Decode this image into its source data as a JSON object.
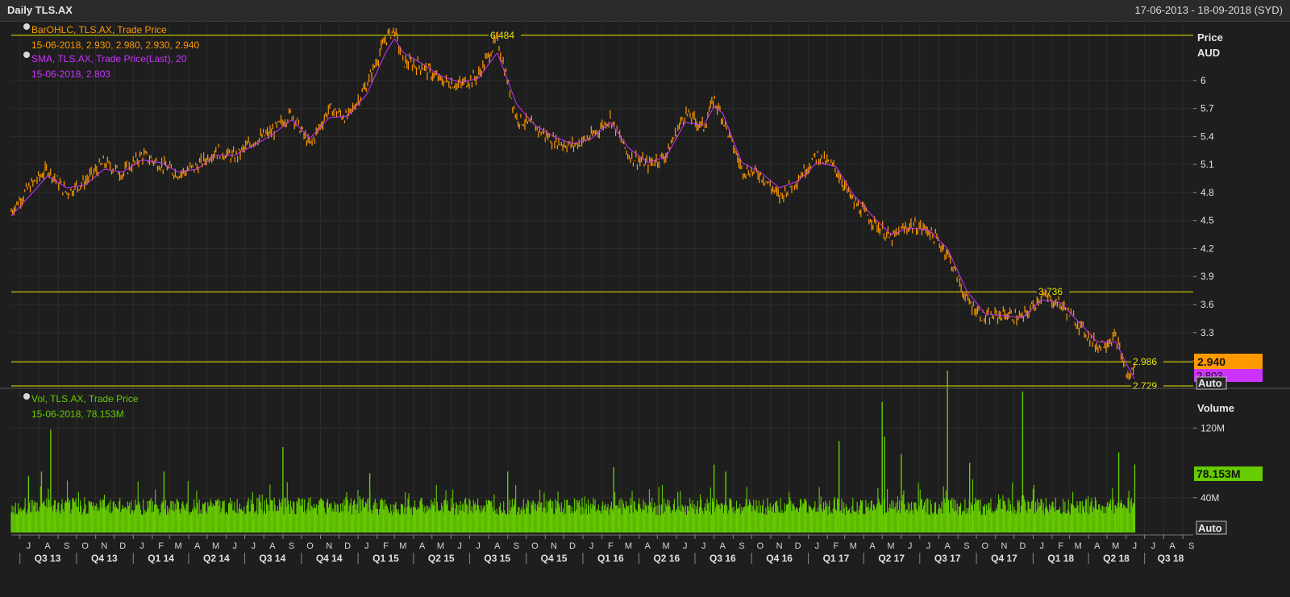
{
  "window": {
    "title": "Daily TLS.AX",
    "date_range": "17-06-2013 - 18-09-2018 (SYD)"
  },
  "price_panel": {
    "axis_title_1": "Price",
    "axis_title_2": "AUD",
    "auto_label": "Auto",
    "legend": {
      "ohlc_name": "BarOHLC, TLS.AX, Trade Price",
      "ohlc_values": "15-06-2018, 2.930, 2.980, 2.930, 2.940",
      "sma_name": "SMA, TLS.AX, Trade Price(Last),  20",
      "sma_values": "15-06-2018, 2.803"
    },
    "last_price_badge": "2.940",
    "sma_badge": "2.803",
    "hlines": [
      {
        "value": 6.484,
        "label": "6.484"
      },
      {
        "value": 3.736,
        "label": "3.736"
      },
      {
        "value": 2.986,
        "label": "2.986"
      },
      {
        "value": 2.729,
        "label": "2.729"
      }
    ]
  },
  "volume_panel": {
    "axis_title": "Volume",
    "auto_label": "Auto",
    "legend": {
      "name": "Vol, TLS.AX, Trade Price",
      "values": "15-06-2018, 78.153M"
    },
    "last_badge": "78.153M"
  },
  "colors": {
    "ohlc": "#ff9900",
    "sma": "#cc33ff",
    "volume": "#66cc00",
    "hline": "#e6e600",
    "background": "#1e1e1e"
  },
  "chart_data": [
    {
      "type": "line",
      "title": "Daily TLS.AX",
      "ylabel": "Price AUD",
      "ylim": [
        2.72,
        6.62
      ],
      "y_ticks": [
        {
          "value": 6.0,
          "label": "6"
        },
        {
          "value": 5.7,
          "label": "5.7"
        },
        {
          "value": 5.4,
          "label": "5.4"
        },
        {
          "value": 5.1,
          "label": "5.1"
        },
        {
          "value": 4.8,
          "label": "4.8"
        },
        {
          "value": 4.5,
          "label": "4.5"
        },
        {
          "value": 4.2,
          "label": "4.2"
        },
        {
          "value": 3.9,
          "label": "3.9"
        },
        {
          "value": 3.6,
          "label": "3.6"
        },
        {
          "value": 3.3,
          "label": "3.3"
        },
        {
          "value": 3.0,
          "label": "3"
        }
      ],
      "x": [
        "2013-06-17",
        "2013-07-15",
        "2013-08-15",
        "2013-09-15",
        "2013-10-15",
        "2013-11-15",
        "2013-12-15",
        "2014-01-15",
        "2014-02-15",
        "2014-03-15",
        "2014-04-15",
        "2014-05-15",
        "2014-06-15",
        "2014-07-15",
        "2014-08-15",
        "2014-09-15",
        "2014-10-15",
        "2014-11-15",
        "2014-12-15",
        "2015-01-15",
        "2015-02-15",
        "2015-03-01",
        "2015-03-15",
        "2015-04-15",
        "2015-05-15",
        "2015-06-15",
        "2015-07-15",
        "2015-08-15",
        "2015-09-15",
        "2015-10-15",
        "2015-11-15",
        "2015-12-15",
        "2016-01-15",
        "2016-02-15",
        "2016-03-15",
        "2016-04-15",
        "2016-05-15",
        "2016-06-15",
        "2016-07-15",
        "2016-08-01",
        "2016-08-15",
        "2016-09-15",
        "2016-10-15",
        "2016-11-15",
        "2016-12-15",
        "2017-01-15",
        "2017-02-15",
        "2017-03-15",
        "2017-04-15",
        "2017-05-15",
        "2017-06-15",
        "2017-07-15",
        "2017-08-15",
        "2017-09-15",
        "2017-10-15",
        "2017-11-15",
        "2017-12-15",
        "2018-01-15",
        "2018-02-15",
        "2018-03-15",
        "2018-04-15",
        "2018-05-15",
        "2018-06-05",
        "2018-06-15"
      ],
      "series": [
        {
          "name": "BarOHLC, TLS.AX, Trade Price",
          "values": [
            4.6,
            4.85,
            5.05,
            4.8,
            4.92,
            5.12,
            5.0,
            5.2,
            5.1,
            5.0,
            5.08,
            5.25,
            5.18,
            5.35,
            5.45,
            5.65,
            5.3,
            5.7,
            5.6,
            5.95,
            6.45,
            6.55,
            6.2,
            6.15,
            6.0,
            5.95,
            6.05,
            6.45,
            5.6,
            5.5,
            5.35,
            5.3,
            5.4,
            5.6,
            5.2,
            5.1,
            5.2,
            5.65,
            5.5,
            5.8,
            5.6,
            5.05,
            5.0,
            4.75,
            4.95,
            5.2,
            5.05,
            4.7,
            4.5,
            4.3,
            4.45,
            4.4,
            4.15,
            3.65,
            3.45,
            3.5,
            3.45,
            3.7,
            3.6,
            3.4,
            3.15,
            3.25,
            2.8,
            2.94
          ]
        },
        {
          "name": "SMA, TLS.AX, Trade Price(Last),  20",
          "values": [
            4.55,
            4.75,
            4.98,
            4.85,
            4.88,
            5.05,
            5.02,
            5.15,
            5.12,
            5.02,
            5.05,
            5.2,
            5.2,
            5.3,
            5.42,
            5.58,
            5.38,
            5.6,
            5.62,
            5.85,
            6.3,
            6.45,
            6.3,
            6.18,
            6.05,
            5.98,
            6.02,
            6.3,
            5.75,
            5.52,
            5.4,
            5.32,
            5.38,
            5.55,
            5.28,
            5.12,
            5.18,
            5.55,
            5.52,
            5.72,
            5.65,
            5.12,
            5.02,
            4.85,
            4.92,
            5.12,
            5.08,
            4.78,
            4.55,
            4.35,
            4.42,
            4.4,
            4.2,
            3.75,
            3.5,
            3.48,
            3.46,
            3.65,
            3.62,
            3.42,
            3.2,
            3.2,
            2.92,
            2.803
          ]
        }
      ]
    },
    {
      "type": "bar",
      "title": "Vol, TLS.AX, Trade Price",
      "ylabel": "Volume",
      "ylim": [
        0,
        160
      ],
      "y_ticks": [
        {
          "value": 120,
          "label": "120M"
        },
        {
          "value": 40,
          "label": "40M"
        }
      ],
      "unit": "M",
      "baseline_range": [
        20,
        40
      ],
      "spikes": [
        {
          "x": "2013-07-15",
          "value": 65
        },
        {
          "x": "2013-08-05",
          "value": 70
        },
        {
          "x": "2013-08-20",
          "value": 118
        },
        {
          "x": "2014-02-20",
          "value": 70
        },
        {
          "x": "2014-09-01",
          "value": 98
        },
        {
          "x": "2015-01-20",
          "value": 68
        },
        {
          "x": "2015-09-01",
          "value": 70
        },
        {
          "x": "2016-02-20",
          "value": 75
        },
        {
          "x": "2016-08-01",
          "value": 78
        },
        {
          "x": "2016-08-20",
          "value": 70
        },
        {
          "x": "2017-02-20",
          "value": 105
        },
        {
          "x": "2017-05-01",
          "value": 150
        },
        {
          "x": "2017-05-05",
          "value": 110
        },
        {
          "x": "2017-06-01",
          "value": 90
        },
        {
          "x": "2017-08-15",
          "value": 186
        },
        {
          "x": "2017-09-20",
          "value": 80
        },
        {
          "x": "2017-12-15",
          "value": 162
        },
        {
          "x": "2018-05-20",
          "value": 92
        },
        {
          "x": "2018-06-15",
          "value": 78.153
        }
      ],
      "last_value": 78.153
    }
  ],
  "x_axis": {
    "months": [
      "J",
      "A",
      "S",
      "O",
      "N",
      "D",
      "J",
      "F",
      "M",
      "A",
      "M",
      "J",
      "J",
      "A",
      "S",
      "O",
      "N",
      "D",
      "J",
      "F",
      "M",
      "A",
      "M",
      "J",
      "J",
      "A",
      "S",
      "O",
      "N",
      "D",
      "J",
      "F",
      "M",
      "A",
      "M",
      "J",
      "J",
      "A",
      "S",
      "O",
      "N",
      "D",
      "J",
      "F",
      "M",
      "A",
      "M",
      "J",
      "J",
      "A",
      "S",
      "O",
      "N",
      "D",
      "J",
      "F",
      "M",
      "A",
      "M",
      "J",
      "J",
      "A",
      "S"
    ],
    "quarters": [
      "Q3 13",
      "Q4 13",
      "Q1 14",
      "Q2 14",
      "Q3 14",
      "Q4 14",
      "Q1 15",
      "Q2 15",
      "Q3 15",
      "Q4 15",
      "Q1 16",
      "Q2 16",
      "Q3 16",
      "Q4 16",
      "Q1 17",
      "Q2 17",
      "Q3 17",
      "Q4 17",
      "Q1 18",
      "Q2 18",
      "Q3 18"
    ]
  }
}
